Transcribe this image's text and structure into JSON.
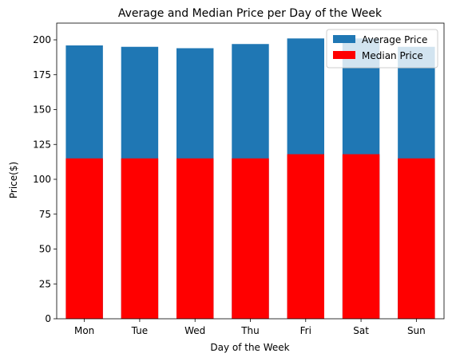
{
  "chart_data": {
    "type": "bar",
    "title": "Average and Median Price per Day of the Week",
    "xlabel": "Day of the Week",
    "ylabel": "Price($)",
    "categories": [
      "Mon",
      "Tue",
      "Wed",
      "Thu",
      "Fri",
      "Sat",
      "Sun"
    ],
    "series": [
      {
        "name": "Average Price",
        "color": "#1f77b4",
        "values": [
          196,
          195,
          194,
          197,
          201,
          201,
          195
        ]
      },
      {
        "name": "Median Price",
        "color": "#ff0000",
        "values": [
          115,
          115,
          115,
          115,
          118,
          118,
          115
        ]
      }
    ],
    "ylim": [
      0,
      212
    ],
    "yticks": [
      "0",
      "25",
      "50",
      "75",
      "100",
      "125",
      "150",
      "175",
      "200"
    ],
    "legend_position": "top-right",
    "grid": false
  }
}
